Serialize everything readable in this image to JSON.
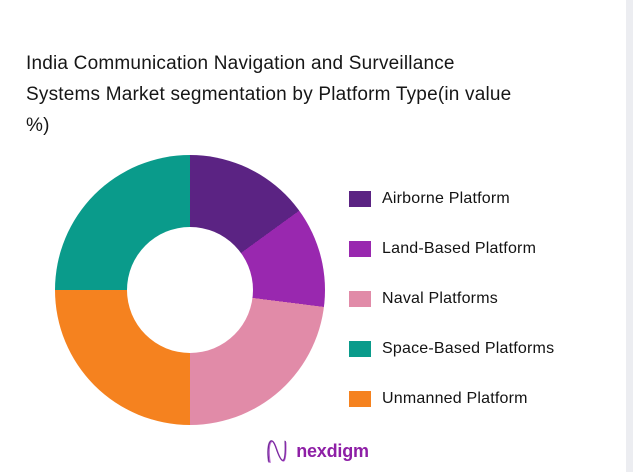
{
  "page": {
    "background": "#ffffff",
    "right_edge_color": "#ecedf1"
  },
  "title": "India Communication Navigation and Surveillance Systems Market segmentation by Platform Type(in value %)",
  "chart_data": {
    "type": "pie",
    "subtype": "donut",
    "title": "India Communication Navigation and Surveillance Systems Market segmentation by Platform Type(in value %)",
    "unit": "value %",
    "slices": [
      {
        "label": "Airborne Platform",
        "value": 15,
        "color": "#5b2383"
      },
      {
        "label": "Land-Based Platform",
        "value": 12,
        "color": "#9928af"
      },
      {
        "label": "Naval Platforms",
        "value": 23,
        "color": "#e18ba8"
      },
      {
        "label": "Space-Based Platforms",
        "value": 25,
        "color": "#0a9b8b"
      },
      {
        "label": "Unmanned Platform",
        "value": 25,
        "color": "#f5821f"
      }
    ],
    "clockwise_draw_order": [
      0,
      1,
      2,
      4,
      3
    ],
    "start_angle_deg": 0,
    "direction": "clockwise",
    "inner_radius_ratio": 0.47,
    "data_labels": false,
    "legend_position": "right"
  },
  "footer": {
    "brand": "nexdigm",
    "brand_color": "#8e1fa6",
    "logo_icon": "nexdigm-n-swirl-icon"
  }
}
